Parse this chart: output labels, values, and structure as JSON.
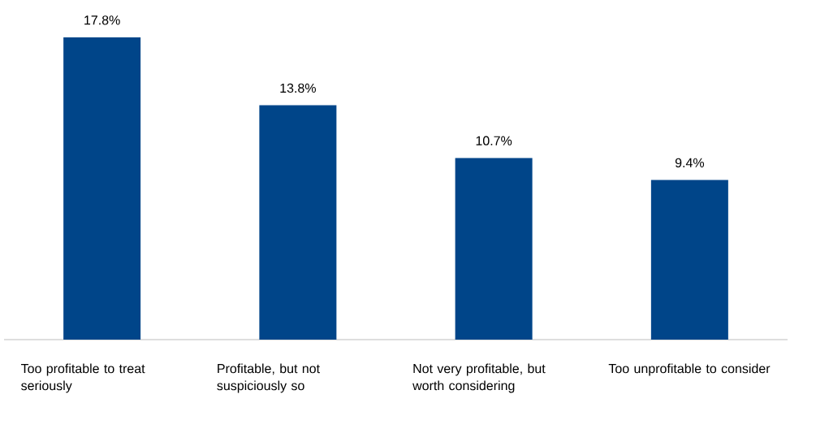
{
  "chart_data": {
    "type": "bar",
    "categories": [
      "Too profitable to treat seriously",
      "Profitable, but not suspiciously so",
      "Not very profitable, but worth considering",
      "Too unprofitable to consider"
    ],
    "values": [
      17.8,
      13.8,
      10.7,
      9.4
    ],
    "value_labels": [
      "17.8%",
      "13.8%",
      "10.7%",
      "9.4%"
    ],
    "color": "#004589"
  }
}
